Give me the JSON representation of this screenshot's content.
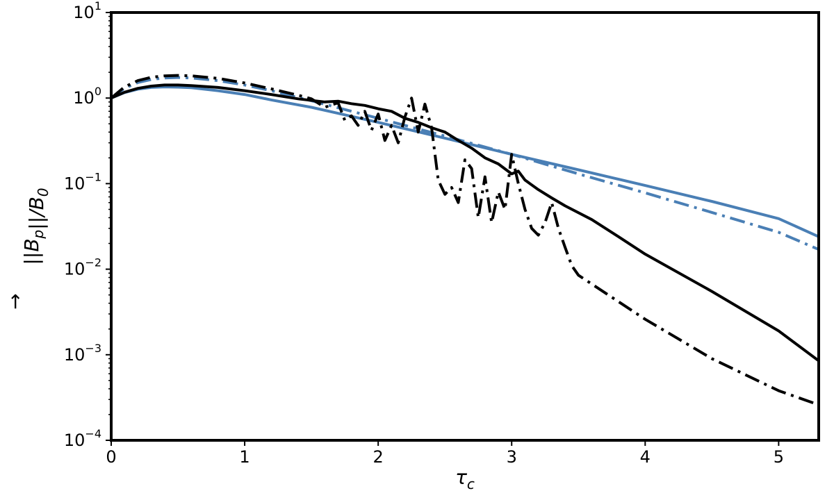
{
  "chart_data": {
    "type": "line",
    "title": "",
    "xlabel": "τ_c",
    "ylabel": "||B_p||/B_0",
    "xlim": [
      0,
      5.3
    ],
    "ylim": [
      0.0001,
      10
    ],
    "yscale": "log",
    "grid": false,
    "legend": "none",
    "x_ticks": [
      {
        "value": 0,
        "label": "0"
      },
      {
        "value": 1,
        "label": "1"
      },
      {
        "value": 2,
        "label": "2"
      },
      {
        "value": 3,
        "label": "3"
      },
      {
        "value": 4,
        "label": "4"
      },
      {
        "value": 5,
        "label": "5"
      }
    ],
    "y_ticks": [
      {
        "value": 10,
        "base": "10",
        "exp": "1"
      },
      {
        "value": 1,
        "base": "10",
        "exp": "0"
      },
      {
        "value": 0.1,
        "base": "10",
        "exp": "−1"
      },
      {
        "value": 0.01,
        "base": "10",
        "exp": "−2"
      },
      {
        "value": 0.001,
        "base": "10",
        "exp": "−3"
      },
      {
        "value": 0.0001,
        "base": "10",
        "exp": "−4"
      }
    ],
    "series": [
      {
        "color": "#4a7fb5",
        "style": "solid",
        "x": [
          0,
          0.1,
          0.2,
          0.3,
          0.4,
          0.5,
          0.6,
          0.8,
          1.0,
          1.2,
          1.5,
          2.0,
          2.5,
          3.0,
          3.5,
          4.0,
          4.5,
          5.0,
          5.3
        ],
        "y": [
          1.0,
          1.16,
          1.27,
          1.33,
          1.35,
          1.34,
          1.32,
          1.22,
          1.1,
          0.95,
          0.78,
          0.52,
          0.34,
          0.22,
          0.145,
          0.095,
          0.062,
          0.039,
          0.024
        ]
      },
      {
        "color": "#4a7fb5",
        "style": "dashdot",
        "x": [
          0,
          0.1,
          0.2,
          0.3,
          0.4,
          0.5,
          0.6,
          0.8,
          1.0,
          1.2,
          1.5,
          2.0,
          2.5,
          3.0,
          3.5,
          4.0,
          4.5,
          5.0,
          5.3
        ],
        "y": [
          1.0,
          1.3,
          1.52,
          1.65,
          1.72,
          1.74,
          1.72,
          1.6,
          1.42,
          1.22,
          0.93,
          0.58,
          0.36,
          0.22,
          0.13,
          0.078,
          0.046,
          0.027,
          0.017
        ]
      },
      {
        "color": "#000000",
        "style": "solid",
        "x": [
          0,
          0.1,
          0.2,
          0.3,
          0.4,
          0.5,
          0.6,
          0.8,
          1.0,
          1.2,
          1.4,
          1.6,
          1.7,
          1.8,
          1.9,
          2.0,
          2.1,
          2.2,
          2.3,
          2.4,
          2.5,
          2.6,
          2.7,
          2.8,
          2.9,
          3.0,
          3.05,
          3.1,
          3.2,
          3.3,
          3.4,
          3.6,
          3.8,
          4.0,
          4.5,
          5.0,
          5.3
        ],
        "y": [
          1.0,
          1.17,
          1.3,
          1.38,
          1.42,
          1.42,
          1.4,
          1.33,
          1.22,
          1.1,
          0.98,
          0.9,
          0.92,
          0.86,
          0.82,
          0.75,
          0.7,
          0.58,
          0.52,
          0.45,
          0.4,
          0.32,
          0.26,
          0.2,
          0.17,
          0.13,
          0.14,
          0.11,
          0.085,
          0.068,
          0.055,
          0.038,
          0.024,
          0.015,
          0.0055,
          0.0019,
          0.00085
        ]
      },
      {
        "color": "#000000",
        "style": "dashdot",
        "x": [
          0,
          0.1,
          0.2,
          0.3,
          0.4,
          0.5,
          0.6,
          0.8,
          1.0,
          1.2,
          1.4,
          1.5,
          1.6,
          1.7,
          1.75,
          1.8,
          1.85,
          1.9,
          1.95,
          2.0,
          2.05,
          2.1,
          2.15,
          2.2,
          2.25,
          2.3,
          2.35,
          2.4,
          2.45,
          2.5,
          2.55,
          2.6,
          2.65,
          2.7,
          2.75,
          2.8,
          2.85,
          2.9,
          2.95,
          3.0,
          3.05,
          3.1,
          3.15,
          3.2,
          3.25,
          3.3,
          3.35,
          3.4,
          3.45,
          3.5,
          4.0,
          4.5,
          5.0,
          5.3
        ],
        "y": [
          1.0,
          1.35,
          1.6,
          1.75,
          1.82,
          1.84,
          1.82,
          1.7,
          1.5,
          1.28,
          1.08,
          0.98,
          0.78,
          0.88,
          0.55,
          0.62,
          0.48,
          0.7,
          0.42,
          0.65,
          0.32,
          0.48,
          0.3,
          0.6,
          1.0,
          0.4,
          0.85,
          0.45,
          0.11,
          0.075,
          0.09,
          0.06,
          0.19,
          0.15,
          0.04,
          0.12,
          0.035,
          0.08,
          0.05,
          0.22,
          0.1,
          0.05,
          0.03,
          0.025,
          0.035,
          0.06,
          0.03,
          0.018,
          0.011,
          0.0085,
          0.0026,
          0.0009,
          0.00038,
          0.00026
        ]
      }
    ]
  }
}
